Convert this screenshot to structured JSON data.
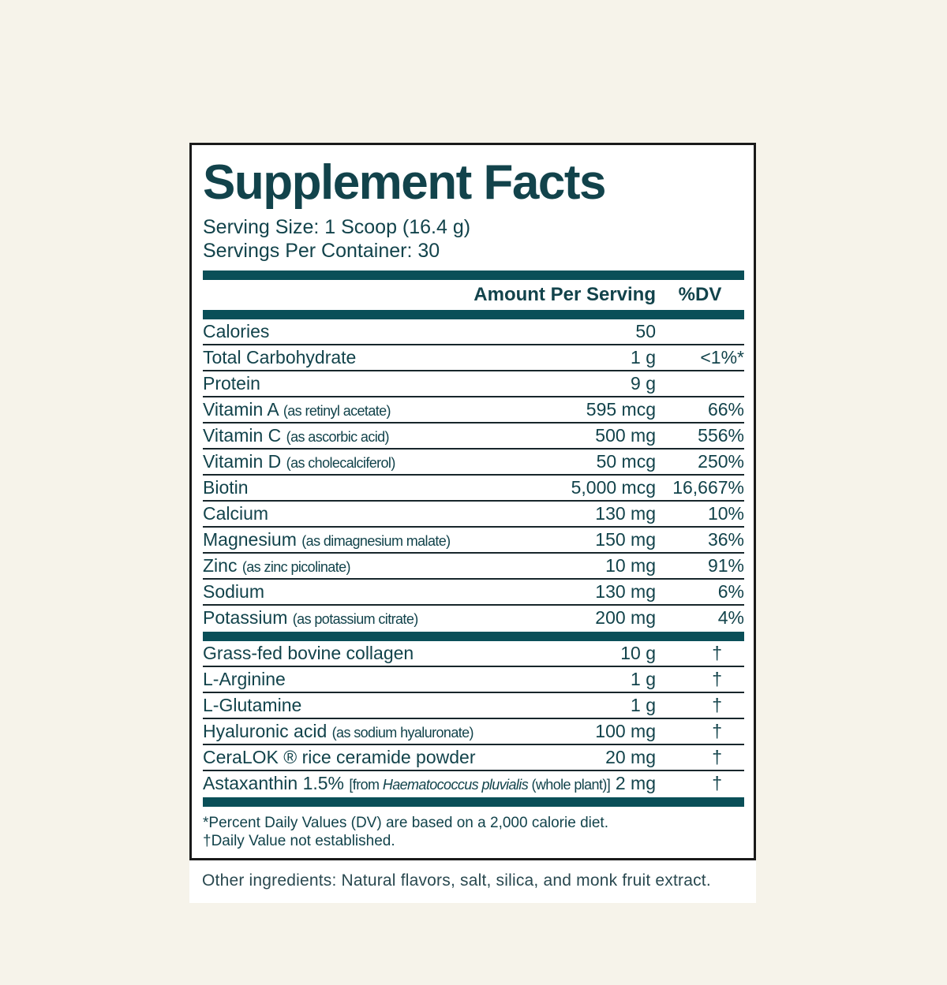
{
  "colors": {
    "page_background": "#f6f3ea",
    "panel_background": "#ffffff",
    "panel_border": "#1a1a1a",
    "teal_bar": "#0a4f58",
    "text_teal": "#12434b",
    "row_line": "#17262b"
  },
  "label": {
    "title": "Supplement Facts",
    "serving_size": "Serving Size: 1 Scoop (16.4 g)",
    "servings_per_container": "Servings Per Container: 30",
    "columns": {
      "amount": "Amount Per Serving",
      "dv": "%DV"
    },
    "sections": [
      {
        "name": "nutrients",
        "rows": [
          {
            "label": "Calories",
            "amount": "50",
            "dv": ""
          },
          {
            "label": "Total Carbohydrate",
            "amount": "1 g",
            "dv": "<1%*"
          },
          {
            "label": "Protein",
            "amount": "9 g",
            "dv": ""
          },
          {
            "label": "Vitamin A",
            "note": "(as retinyl acetate)",
            "amount": "595 mcg",
            "dv": "66%"
          },
          {
            "label": "Vitamin C",
            "note": "(as ascorbic acid)",
            "amount": "500 mg",
            "dv": "556%"
          },
          {
            "label": "Vitamin D",
            "note": "(as cholecalciferol)",
            "amount": "50 mcg",
            "dv": "250%"
          },
          {
            "label": "Biotin",
            "amount": "5,000 mcg",
            "dv": "16,667%"
          },
          {
            "label": "Calcium",
            "amount": "130 mg",
            "dv": "10%"
          },
          {
            "label": "Magnesium",
            "note": "(as dimagnesium malate)",
            "amount": "150 mg",
            "dv": "36%"
          },
          {
            "label": "Zinc",
            "note": "(as zinc picolinate)",
            "amount": "10 mg",
            "dv": "91%"
          },
          {
            "label": "Sodium",
            "amount": "130 mg",
            "dv": "6%"
          },
          {
            "label": "Potassium",
            "note": "(as potassium citrate)",
            "amount": "200 mg",
            "dv": "4%"
          }
        ]
      },
      {
        "name": "other-actives",
        "rows": [
          {
            "label": "Grass-fed bovine collagen",
            "amount": "10 g",
            "dv": "†"
          },
          {
            "label": "L-Arginine",
            "amount": "1 g",
            "dv": "†"
          },
          {
            "label": "L-Glutamine",
            "amount": "1 g",
            "dv": "†"
          },
          {
            "label": "Hyaluronic acid",
            "note": "(as sodium hyaluronate)",
            "amount": "100 mg",
            "dv": "†"
          },
          {
            "label": "CeraLOK ® rice ceramide powder",
            "amount": "20 mg",
            "dv": "†"
          },
          {
            "label": "Astaxanthin 1.5%",
            "note_parts": [
              {
                "text": "[from "
              },
              {
                "text": "Haematococcus pluvialis",
                "italic": true
              },
              {
                "text": " (whole plant)]"
              }
            ],
            "amount": "2 mg",
            "dv": "†"
          }
        ]
      }
    ],
    "footnotes": [
      "*Percent Daily Values (DV) are based on a 2,000 calorie diet.",
      "†Daily Value not established."
    ]
  },
  "other_ingredients": "Other ingredients: Natural flavors, salt, silica, and monk fruit extract."
}
